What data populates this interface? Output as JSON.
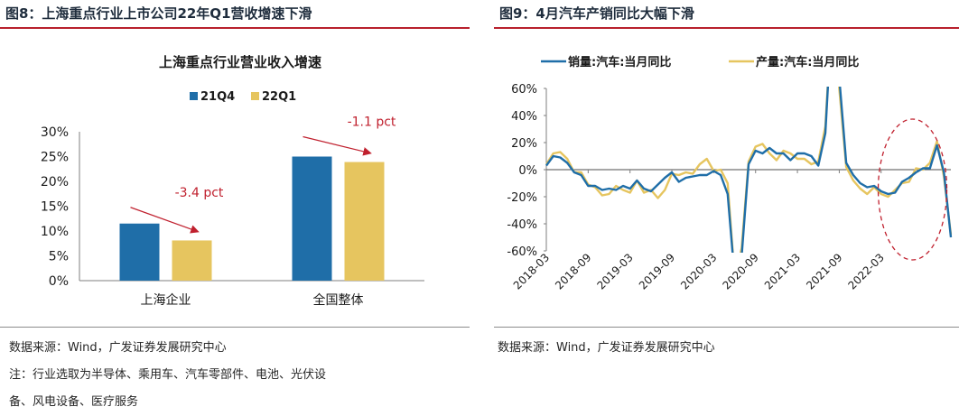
{
  "left_figure": {
    "caption": "图8：上海重点行业上市公司22年Q1营收增速下滑",
    "source": "数据来源：Wind，广发证券发展研究中心",
    "note_line1": "注：行业选取为半导体、乘用车、汽车零部件、电池、光伏设",
    "note_line2": "备、风电设备、医疗服务"
  },
  "right_figure": {
    "caption": "图9：4月汽车产销同比大幅下滑",
    "source": "数据来源：Wind，广发证券发展研究中心"
  },
  "chart_data": [
    {
      "type": "bar",
      "title": "上海重点行业营业收入增速",
      "categories": [
        "上海企业",
        "全国整体"
      ],
      "series": [
        {
          "name": "21Q4",
          "color": "#1f6ea8",
          "values": [
            11.5,
            25.0
          ]
        },
        {
          "name": "22Q1",
          "color": "#e6c55f",
          "values": [
            8.1,
            23.9
          ]
        }
      ],
      "ylim": [
        0,
        30
      ],
      "yticks": [
        "0%",
        "5%",
        "10%",
        "15%",
        "20%",
        "25%",
        "30%"
      ],
      "annotations": [
        "-3.4 pct",
        "-1.1 pct"
      ],
      "annotation_color": "#c0202e",
      "legend_position": "top-center"
    },
    {
      "type": "line",
      "title": "",
      "series": [
        {
          "name": "销量:汽车:当月同比",
          "color": "#1f6ea8",
          "values": [
            3,
            10,
            9,
            5,
            -2,
            -4,
            -12,
            -12,
            -15,
            -14,
            -15,
            -12,
            -14,
            -8,
            -14,
            -16,
            -11,
            -6,
            -2,
            -9,
            -6,
            -5,
            -4,
            -4,
            -1,
            -4,
            -18,
            -80,
            -64,
            4,
            14,
            12,
            16,
            12,
            12,
            7,
            12,
            12,
            10,
            3,
            27,
            120,
            68,
            5,
            -4,
            -10,
            -13,
            -12,
            -16,
            -18,
            -17,
            -9,
            -6,
            -2,
            1,
            1,
            18,
            -2,
            -50
          ]
        },
        {
          "name": "产量:汽车:当月同比",
          "color": "#e6c55f",
          "values": [
            4,
            12,
            13,
            8,
            -2,
            -2,
            -11,
            -13,
            -19,
            -18,
            -12,
            -15,
            -17,
            -8,
            -17,
            -15,
            -21,
            -15,
            -3,
            -4,
            -2,
            -3,
            4,
            8,
            -1,
            0,
            -10,
            -80,
            -58,
            6,
            17,
            19,
            12,
            7,
            14,
            12,
            8,
            8,
            4,
            6,
            32,
            120,
            60,
            2,
            -8,
            -14,
            -18,
            -13,
            -18,
            -20,
            -15,
            -10,
            -9,
            1,
            0,
            5,
            21,
            -5,
            -48
          ]
        }
      ],
      "x_tick_labels": [
        "2018-03",
        "2018-09",
        "2019-03",
        "2019-09",
        "2020-03",
        "2020-09",
        "2021-03",
        "2021-09",
        "2022-03"
      ],
      "ylim": [
        -60,
        60
      ],
      "yticks": [
        "-60%",
        "-40%",
        "-20%",
        "0%",
        "20%",
        "40%",
        "60%"
      ],
      "legend_position": "top"
    }
  ]
}
